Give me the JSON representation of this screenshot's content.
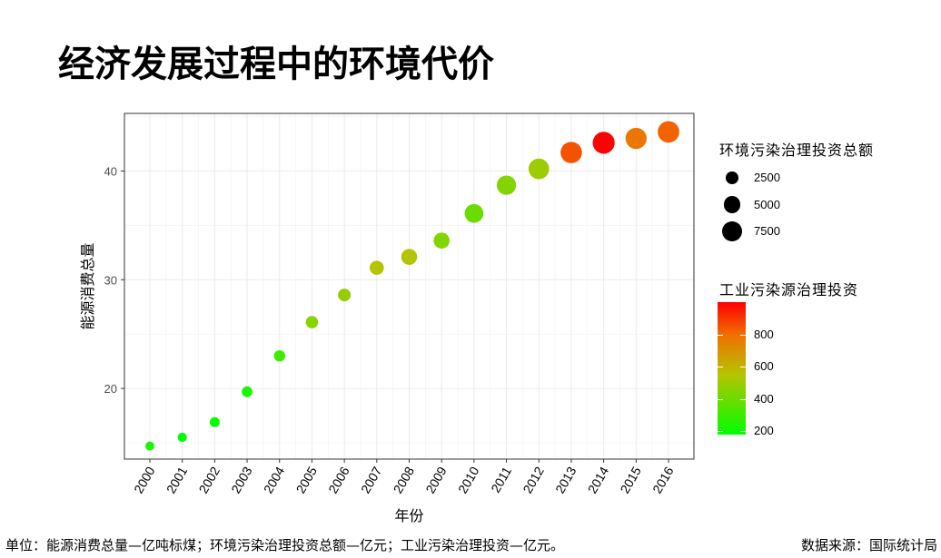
{
  "title": "经济发展过程中的环境代价",
  "footer": {
    "left": "单位：能源消费总量—亿吨标煤；环境污染治理投资总额—亿元；工业污染治理投资—亿元。",
    "right": "数据来源：国际统计局"
  },
  "legend": {
    "size_title": "环境污染治理投资总额",
    "size_items": [
      {
        "label": "2500",
        "value": 2500
      },
      {
        "label": "5000",
        "value": 5000
      },
      {
        "label": "7500",
        "value": 7500
      }
    ],
    "color_title": "工业污染源治理投资",
    "color_ticks": [
      {
        "label": "800",
        "value": 800
      },
      {
        "label": "600",
        "value": 600
      },
      {
        "label": "400",
        "value": 400
      },
      {
        "label": "200",
        "value": 200
      }
    ],
    "color_range": [
      180,
      1000
    ],
    "colors": {
      "low": "#00ff00",
      "mid": "#b5c400",
      "high_mid": "#f07000",
      "high": "#ff0000"
    }
  },
  "chart_data": {
    "type": "scatter",
    "xlabel": "年份",
    "ylabel": "能源消费总量",
    "x": [
      "2000",
      "2001",
      "2002",
      "2003",
      "2004",
      "2005",
      "2006",
      "2007",
      "2008",
      "2009",
      "2010",
      "2011",
      "2012",
      "2013",
      "2014",
      "2015",
      "2016"
    ],
    "y": [
      14.7,
      15.5,
      16.9,
      19.7,
      23.0,
      26.1,
      28.6,
      31.1,
      32.1,
      33.6,
      36.1,
      38.7,
      40.2,
      41.7,
      42.6,
      43.0,
      43.6
    ],
    "size": [
      1015,
      1107,
      1367,
      1628,
      1909,
      2388,
      2567,
      3387,
      4490,
      4525,
      6654,
      7114,
      8253,
      9037,
      9575,
      8806,
      9220
    ],
    "color": [
      240,
      175,
      189,
      222,
      308,
      458,
      484,
      552,
      543,
      443,
      397,
      445,
      500,
      850,
      998,
      774,
      819
    ],
    "yticks": [
      20,
      30,
      40
    ],
    "ylim": [
      13.5,
      45.3
    ],
    "grid": true,
    "legend": "right"
  }
}
